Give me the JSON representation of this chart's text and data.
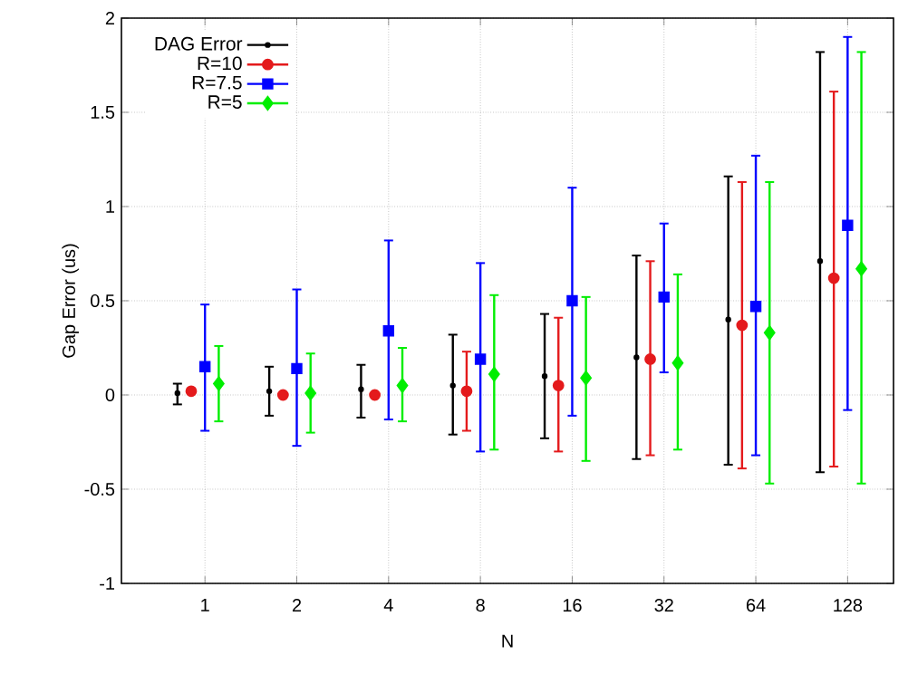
{
  "chart_data": {
    "type": "scatter",
    "xlabel": "N",
    "ylabel": "Gap Error (us)",
    "categories": [
      "1",
      "2",
      "4",
      "8",
      "16",
      "32",
      "64",
      "128"
    ],
    "ylim": [
      -1,
      2
    ],
    "yticks": [
      -1,
      -0.5,
      0,
      0.5,
      1,
      1.5,
      2
    ],
    "grid": true,
    "legend": "top left",
    "series": [
      {
        "name": "DAG Error",
        "color": "#000000",
        "marker": "circle",
        "values": [
          0.01,
          0.02,
          0.03,
          0.05,
          0.1,
          0.2,
          0.4,
          0.71
        ],
        "errors": [
          [
            -0.05,
            0.06
          ],
          [
            -0.11,
            0.15
          ],
          [
            -0.12,
            0.16
          ],
          [
            -0.21,
            0.32
          ],
          [
            -0.23,
            0.43
          ],
          [
            -0.34,
            0.74
          ],
          [
            -0.37,
            1.16
          ],
          [
            -0.41,
            1.82
          ]
        ]
      },
      {
        "name": "R=10",
        "color": "#e41a1c",
        "marker": "circle",
        "values": [
          0.02,
          0.0,
          0.0,
          0.02,
          0.05,
          0.19,
          0.37,
          0.62
        ],
        "errors": [
          null,
          null,
          null,
          [
            -0.19,
            0.23
          ],
          [
            -0.3,
            0.41
          ],
          [
            -0.32,
            0.71
          ],
          [
            -0.39,
            1.13
          ],
          [
            -0.38,
            1.61
          ]
        ]
      },
      {
        "name": "R=7.5",
        "color": "#0000ff",
        "marker": "square",
        "values": [
          0.15,
          0.14,
          0.34,
          0.19,
          0.5,
          0.52,
          0.47,
          0.9
        ],
        "errors": [
          [
            -0.19,
            0.48
          ],
          [
            -0.27,
            0.56
          ],
          [
            -0.13,
            0.82
          ],
          [
            -0.3,
            0.7
          ],
          [
            -0.11,
            1.1
          ],
          [
            0.12,
            0.91
          ],
          [
            -0.32,
            1.27
          ],
          [
            -0.08,
            1.9
          ]
        ]
      },
      {
        "name": "R=5",
        "color": "#00ee00",
        "marker": "diamond",
        "values": [
          0.06,
          0.01,
          0.05,
          0.11,
          0.09,
          0.17,
          0.33,
          0.67
        ],
        "errors": [
          [
            -0.14,
            0.26
          ],
          [
            -0.2,
            0.22
          ],
          [
            -0.14,
            0.25
          ],
          [
            -0.29,
            0.53
          ],
          [
            -0.35,
            0.52
          ],
          [
            -0.29,
            0.64
          ],
          [
            -0.47,
            1.13
          ],
          [
            -0.47,
            1.82
          ]
        ]
      }
    ]
  }
}
